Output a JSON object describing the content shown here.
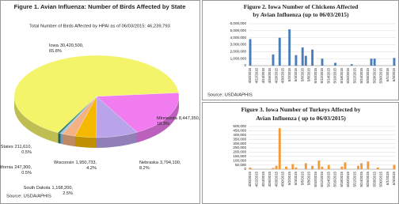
{
  "chart_data": [
    {
      "type": "pie",
      "title": "Figure 1. Avian Influenza: Number of Birds Affected by State",
      "subtitle": "Total Number of Birds Affected by HPAI as of 06/03/2015: 46,239,793",
      "source": "Source: USDA/APHIS",
      "categories": [
        "Iowa",
        "Minnesota",
        "Nebraska",
        "Wisconsin",
        "South Dakota",
        "California",
        "Other States"
      ],
      "values": [
        30420500,
        8447350,
        3794100,
        1950733,
        1168200,
        247300,
        211610
      ],
      "value_labels": [
        "30,420,500,",
        "8,447,350,",
        "3,794,100,",
        "1,950,733,",
        "1,168,200,",
        "247,300,",
        "211,610,"
      ],
      "percents": [
        65.8,
        18.3,
        8.2,
        4.2,
        2.5,
        0.5,
        0.5
      ],
      "percent_labels": [
        "65.8%",
        "18.3%",
        "8.2%",
        "4.2%",
        "2.5%",
        "0.5%",
        "0.5%"
      ],
      "colors": [
        "#f4f46a",
        "#f07cf0",
        "#b9a4ea",
        "#f5b800",
        "#f4b183",
        "#9dc3e6",
        "#2e7d6b"
      ]
    },
    {
      "type": "bar",
      "title": [
        "Figure 2. Iowa Number of Chickens Affected",
        "by Avian Influenza (up to 06/03/2015)"
      ],
      "source": "Source: USDA/APHIS",
      "color": "#4a7ebb",
      "categories": [
        "4/20/2015",
        null,
        "4/22/2015",
        null,
        "4/24/2015",
        null,
        "4/26/2015",
        null,
        "4/28/2015",
        null,
        "4/30/2015",
        null,
        "5/2/2015",
        null,
        "5/4/2015",
        null,
        "5/6/2015",
        null,
        "5/8/2015",
        null,
        "5/10/2015",
        null,
        "5/12/2015",
        null,
        "5/14/2015",
        null,
        "5/16/2015",
        null,
        "5/18/2015",
        null,
        "5/20/2015",
        null,
        "5/22/2015",
        null,
        "5/24/2015",
        null,
        "5/26/2015",
        null,
        "5/28/2015",
        null,
        "5/30/2015",
        null,
        "6/1/2015",
        null,
        "6/3/2015"
      ],
      "values": [
        3800000,
        0,
        0,
        0,
        0,
        0,
        0,
        1600000,
        0,
        4000000,
        0,
        0,
        5200000,
        0,
        1500000,
        0,
        2600000,
        1400000,
        0,
        2300000,
        0,
        0,
        1000000,
        0,
        0,
        0,
        400000,
        0,
        0,
        0,
        0,
        200000,
        0,
        0,
        0,
        0,
        0,
        1000000,
        1000000,
        0,
        0,
        0,
        0,
        0,
        1100000
      ],
      "ylim": [
        0,
        6000000
      ],
      "yticks": [
        0,
        {
          "value": 1000000,
          "label": "1,000,000"
        },
        {
          "value": 2000000,
          "label": "2,000,000"
        },
        {
          "value": 3000000,
          "label": "3,000,000"
        },
        {
          "value": 4000000,
          "label": "4,000,000"
        },
        {
          "value": 5000000,
          "label": "5,000,000"
        },
        {
          "value": 6000000,
          "label": "6,000,000"
        }
      ],
      "grid": true
    },
    {
      "type": "bar",
      "title": [
        "Figure 3. Iowa Number of Turkeys Affected by",
        "Avian Influenza ( up to 06/03/2015)"
      ],
      "color": "#f39b3a",
      "categories": [
        "4/20/2015",
        null,
        "4/22/2015",
        null,
        "4/24/2015",
        null,
        "4/26/2015",
        null,
        "4/28/2015",
        null,
        "4/30/2015",
        null,
        "5/2/2015",
        null,
        "5/4/2015",
        null,
        "5/6/2015",
        null,
        "5/8/2015",
        null,
        "5/10/2015",
        null,
        "5/12/2015",
        null,
        "5/14/2015",
        null,
        "5/16/2015",
        null,
        "5/18/2015",
        null,
        "5/20/2015",
        null,
        "5/22/2015",
        null,
        "5/24/2015",
        null,
        "5/26/2015",
        null,
        "5/28/2015",
        null,
        "5/30/2015",
        null,
        "6/1/2015",
        null,
        "6/3/2015"
      ],
      "values": [
        20000,
        0,
        0,
        0,
        0,
        0,
        0,
        15000,
        40000,
        480000,
        0,
        30000,
        0,
        60000,
        20000,
        0,
        0,
        70000,
        0,
        40000,
        0,
        100000,
        30000,
        0,
        50000,
        0,
        0,
        0,
        30000,
        80000,
        0,
        0,
        0,
        40000,
        70000,
        0,
        90000,
        0,
        0,
        20000,
        0,
        0,
        0,
        0,
        50000
      ],
      "ylim": [
        0,
        500000
      ],
      "yticks": [
        0,
        {
          "value": 50000,
          "label": "50,000"
        },
        {
          "value": 100000,
          "label": "100,000"
        },
        {
          "value": 150000,
          "label": "150,000"
        },
        {
          "value": 200000,
          "label": "200,000"
        },
        {
          "value": 250000,
          "label": "250,000"
        },
        {
          "value": 300000,
          "label": "300,000"
        },
        {
          "value": 350000,
          "label": "350,000"
        },
        {
          "value": 400000,
          "label": "400,000"
        },
        {
          "value": 450000,
          "label": "450,000"
        },
        {
          "value": 500000,
          "label": "500,000"
        }
      ],
      "grid": true
    }
  ]
}
